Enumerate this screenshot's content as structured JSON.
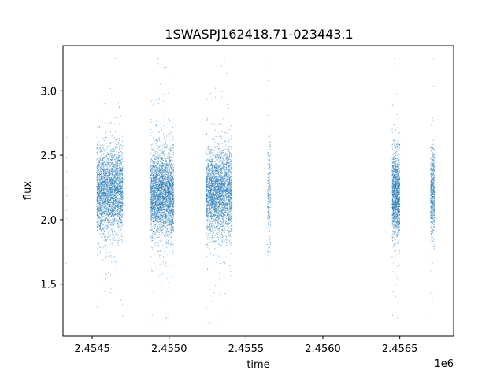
{
  "chart_data": {
    "type": "scatter",
    "title": "1SWASPJ162418.71-023443.1",
    "xlabel": "time",
    "ylabel": "flux",
    "x_offset_label": "1e6",
    "xlim": [
      2454310,
      2456850
    ],
    "ylim": [
      1.095,
      3.35
    ],
    "x_ticks": [
      2454500,
      2455000,
      2455500,
      2456000,
      2456500
    ],
    "x_tick_labels": [
      "2.4545",
      "2.4550",
      "2.4555",
      "2.4560",
      "2.4565"
    ],
    "y_ticks": [
      1.5,
      2.0,
      2.5,
      3.0
    ],
    "y_tick_labels": [
      "1.5",
      "2.0",
      "2.5",
      "3.0"
    ],
    "grid": false,
    "marker_color": "#1f77b4",
    "series": [
      {
        "clusters": [
          {
            "x_range": [
              2454330,
              2454335
            ],
            "y_center": 2.15,
            "y_spread": 0.35,
            "count": 12
          },
          {
            "x_range": [
              2454530,
              2454700
            ],
            "y_center": 2.22,
            "y_spread": 0.16,
            "count": 3200
          },
          {
            "x_range": [
              2454880,
              2455030
            ],
            "y_center": 2.2,
            "y_spread": 0.16,
            "count": 3400
          },
          {
            "x_range": [
              2455240,
              2455410
            ],
            "y_center": 2.21,
            "y_spread": 0.16,
            "count": 3300
          },
          {
            "x_range": [
              2455640,
              2455660
            ],
            "y_center": 2.15,
            "y_spread": 0.2,
            "count": 250
          },
          {
            "x_range": [
              2456450,
              2456500
            ],
            "y_center": 2.2,
            "y_spread": 0.16,
            "count": 1500
          },
          {
            "x_range": [
              2456700,
              2456730
            ],
            "y_center": 2.2,
            "y_spread": 0.17,
            "count": 700
          }
        ]
      }
    ]
  }
}
